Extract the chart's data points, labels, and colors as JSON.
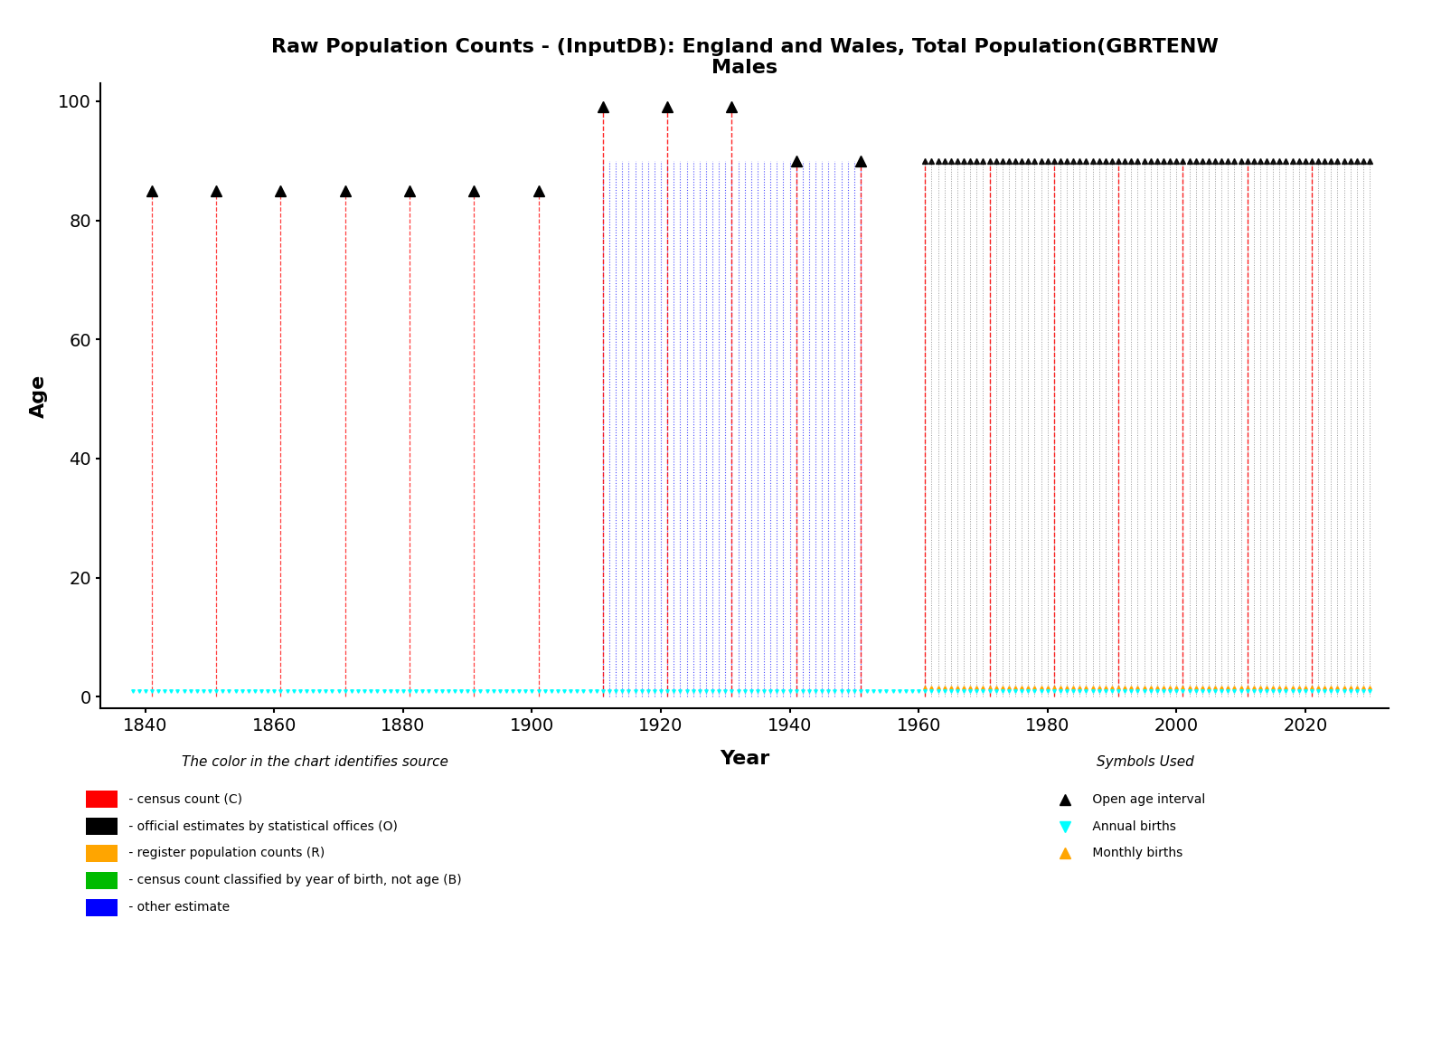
{
  "title_line1": "Raw Population Counts - (InputDB): England and Wales, Total Population(GBRTENW",
  "title_line2": "Males",
  "xlabel": "Year",
  "ylabel": "Age",
  "xlim": [
    1833,
    2033
  ],
  "ylim": [
    -2,
    103
  ],
  "yticks": [
    0,
    20,
    40,
    60,
    80,
    100
  ],
  "xticks": [
    1840,
    1860,
    1880,
    1900,
    1920,
    1940,
    1960,
    1980,
    2000,
    2020
  ],
  "census_red_years": [
    1841,
    1851,
    1861,
    1871,
    1881,
    1891,
    1901
  ],
  "census_red_max_age": 85,
  "red_tall_years": [
    1911,
    1921,
    1931
  ],
  "red_tall_max_age": 99,
  "blue_block_years_start": 1911,
  "blue_block_years_end": 1951,
  "blue_block_max_age": 90,
  "blue_tall_years": [
    1911,
    1921,
    1931
  ],
  "red_medium_years": [
    1941,
    1951
  ],
  "red_medium_max_age": 85,
  "gray_block_start": 1961,
  "gray_block_end": 2031,
  "gray_block_max_age": 90,
  "red_census_in_gray": [
    1961,
    1971,
    1981,
    1991,
    2001,
    2011,
    2021
  ],
  "annual_births_start": 1838,
  "annual_births_end": 2030,
  "orange_births_start": 1961,
  "orange_births_end": 2030,
  "legend_color_title": "The color in the chart identifies source",
  "legend_symbol_title": "Symbols Used",
  "color_items": [
    {
      "color": "#FF0000",
      "label": " - census count (C)"
    },
    {
      "color": "#000000",
      "label": " - official estimates by statistical offices (O)"
    },
    {
      "color": "#FFA500",
      "label": " - register population counts (R)"
    },
    {
      "color": "#00BB00",
      "label": " - census count classified by year of birth, not age (B)"
    },
    {
      "color": "#0000FF",
      "label": " - other estimate"
    }
  ],
  "symbol_items": [
    {
      "marker": "^",
      "color": "#000000",
      "label": " Open age interval"
    },
    {
      "marker": "v",
      "color": "#00FFFF",
      "label": " Annual births"
    },
    {
      "marker": "^",
      "color": "#FFA500",
      "label": " Monthly births"
    }
  ],
  "background_color": "#FFFFFF",
  "fig_width": 15.84,
  "fig_height": 11.52,
  "dpi": 100
}
